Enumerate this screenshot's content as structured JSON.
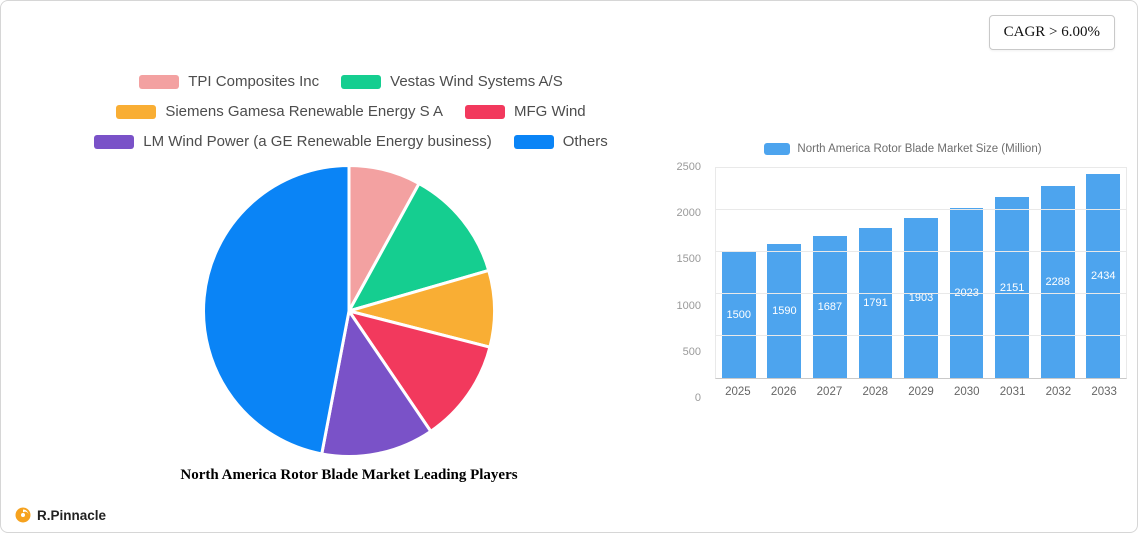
{
  "cagr_badge": "CAGR > 6.00%",
  "logo_text": "R.Pinnacle",
  "logo_color": "#F6A21E",
  "chart_data": [
    {
      "type": "pie",
      "title": "North America Rotor Blade Market Leading Players",
      "legend_position": "top",
      "slices": [
        {
          "label": "TPI Composites Inc",
          "value": 8,
          "color": "#F3A1A1"
        },
        {
          "label": "Vestas Wind Systems A/S",
          "value": 12.5,
          "color": "#15CE90"
        },
        {
          "label": "Siemens Gamesa Renewable Energy S A",
          "value": 8.5,
          "color": "#F9AE34"
        },
        {
          "label": "MFG Wind",
          "value": 11.5,
          "color": "#F2395D"
        },
        {
          "label": "LM Wind Power (a GE Renewable Energy business)",
          "value": 12.5,
          "color": "#7A52C8"
        },
        {
          "label": "Others",
          "value": 47,
          "color": "#0A84F6"
        }
      ]
    },
    {
      "type": "bar",
      "series_name": "North America Rotor Blade Market Size (Million)",
      "categories": [
        "2025",
        "2026",
        "2027",
        "2028",
        "2029",
        "2030",
        "2031",
        "2032",
        "2033"
      ],
      "values": [
        1500,
        1590,
        1687,
        1791,
        1903,
        2023,
        2151,
        2288,
        2434
      ],
      "bar_color": "#4DA4EE",
      "ylim": [
        0,
        2500
      ],
      "yticks": [
        0,
        500,
        1000,
        1500,
        2000,
        2500
      ],
      "grid": true,
      "legend_position": "top"
    }
  ]
}
